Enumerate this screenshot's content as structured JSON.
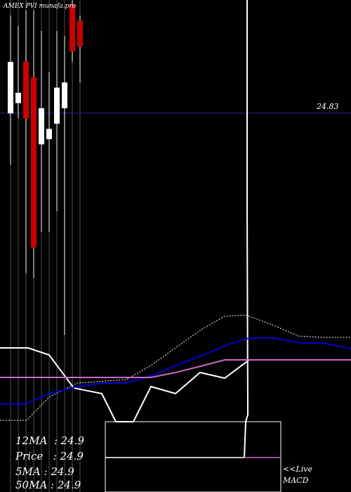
{
  "chart_title": "AMEX PVI munafa.pro",
  "price_level_label": "24.83",
  "info": [
    {
      "label": "12MA",
      "value": "24.9"
    },
    {
      "label": "Price",
      "value": "24.9"
    },
    {
      "label": "5MA",
      "value": "24.9"
    },
    {
      "label": "50MA",
      "value": "24.9"
    }
  ],
  "live_label": "<<Live",
  "macd_label": "MACD",
  "colors": {
    "background": "#000000",
    "up_candle": "#ffffff",
    "down_candle": "#cc0000",
    "level_line": "#1a1a6e",
    "ma_blue": "#0000cc",
    "ma_purple": "#cc66cc"
  },
  "chart_data": {
    "type": "candlestick",
    "price_level": 24.83,
    "ylim": [
      24.3,
      24.9
    ],
    "candles": [
      {
        "open": 24.68,
        "high": 24.87,
        "low": 24.58,
        "close": 24.78,
        "type": "up"
      },
      {
        "open": 24.72,
        "high": 24.85,
        "low": 24.67,
        "close": 24.7,
        "type": "up"
      },
      {
        "open": 24.78,
        "high": 24.88,
        "low": 24.37,
        "close": 24.67,
        "type": "down"
      },
      {
        "open": 24.75,
        "high": 24.88,
        "low": 24.36,
        "close": 24.42,
        "type": "down"
      },
      {
        "open": 24.69,
        "high": 24.84,
        "low": 24.45,
        "close": 24.62,
        "type": "up"
      },
      {
        "open": 24.63,
        "high": 24.76,
        "low": 24.45,
        "close": 24.65,
        "type": "up"
      },
      {
        "open": 24.66,
        "high": 24.84,
        "low": 24.49,
        "close": 24.73,
        "type": "up"
      },
      {
        "open": 24.69,
        "high": 24.83,
        "low": 24.25,
        "close": 24.74,
        "type": "up"
      },
      {
        "open": 24.89,
        "high": 24.9,
        "low": 24.78,
        "close": 24.8,
        "type": "down"
      },
      {
        "open": 24.86,
        "high": 24.87,
        "low": 24.74,
        "close": 24.81,
        "type": "down"
      }
    ]
  }
}
